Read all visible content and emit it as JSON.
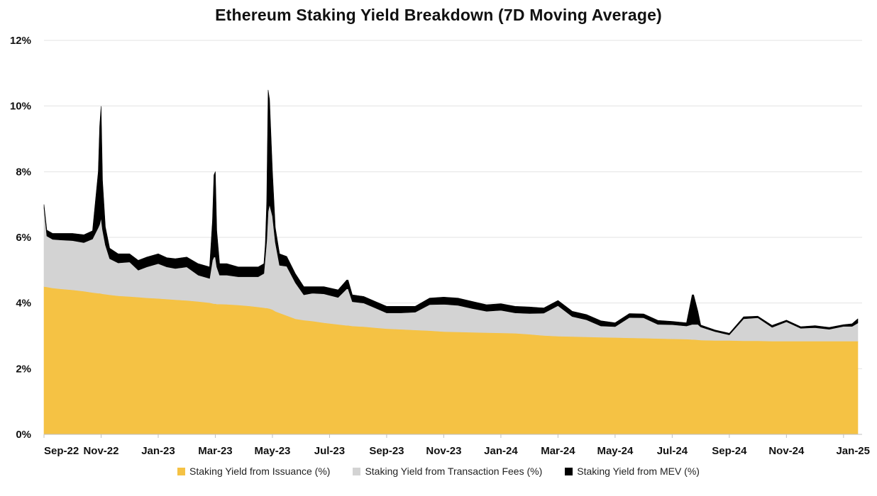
{
  "chart_data": {
    "type": "area",
    "stacked": true,
    "title": "Ethereum Staking Yield Breakdown (7D Moving Average)",
    "xlabel": "",
    "ylabel": "",
    "ylim": [
      0,
      12
    ],
    "yticks": [
      "0%",
      "2%",
      "4%",
      "6%",
      "8%",
      "10%",
      "12%"
    ],
    "ytick_values": [
      0,
      2,
      4,
      6,
      8,
      10,
      12
    ],
    "xticks": [
      "Sep-22",
      "Nov-22",
      "Jan-23",
      "Mar-23",
      "May-23",
      "Jul-23",
      "Sep-23",
      "Nov-23",
      "Jan-24",
      "Mar-24",
      "May-24",
      "Jul-24",
      "Sep-24",
      "Nov-24",
      "Jan-25"
    ],
    "xtick_months": [
      0,
      2,
      4,
      6,
      8,
      10,
      12,
      14,
      16,
      18,
      20,
      22,
      24,
      26,
      28
    ],
    "x_months": [
      0,
      0.1,
      0.3,
      0.6,
      1.0,
      1.4,
      1.7,
      1.9,
      1.95,
      2.0,
      2.05,
      2.15,
      2.3,
      2.6,
      3.0,
      3.3,
      3.6,
      4.0,
      4.3,
      4.6,
      5.0,
      5.4,
      5.8,
      5.9,
      5.95,
      6.0,
      6.05,
      6.15,
      6.4,
      6.8,
      7.2,
      7.5,
      7.7,
      7.75,
      7.8,
      7.85,
      7.9,
      8.0,
      8.1,
      8.25,
      8.5,
      8.8,
      9.1,
      9.4,
      9.8,
      10.3,
      10.6,
      10.65,
      10.8,
      11.2,
      11.6,
      12.0,
      12.5,
      13.0,
      13.5,
      14.0,
      14.5,
      15.0,
      15.5,
      16.0,
      16.5,
      17.0,
      17.5,
      18.0,
      18.5,
      19.0,
      19.5,
      20.0,
      20.5,
      21.0,
      21.5,
      22.0,
      22.5,
      22.7,
      22.75,
      22.9,
      23.0,
      23.5,
      24.0,
      24.5,
      25.0,
      25.5,
      26.0,
      26.5,
      27.0,
      27.5,
      28.0,
      28.3,
      28.5,
      28.7
    ],
    "series": [
      {
        "name": "Staking Yield from Issuance (%)",
        "color": "#F5C244",
        "values": [
          4.5,
          4.49,
          4.46,
          4.43,
          4.4,
          4.36,
          4.32,
          4.3,
          4.3,
          4.29,
          4.28,
          4.27,
          4.25,
          4.22,
          4.2,
          4.18,
          4.16,
          4.14,
          4.12,
          4.1,
          4.08,
          4.05,
          4.01,
          3.99,
          3.98,
          3.98,
          3.97,
          3.97,
          3.96,
          3.94,
          3.91,
          3.88,
          3.86,
          3.85,
          3.85,
          3.84,
          3.83,
          3.8,
          3.75,
          3.7,
          3.62,
          3.52,
          3.48,
          3.45,
          3.4,
          3.35,
          3.32,
          3.32,
          3.3,
          3.28,
          3.25,
          3.22,
          3.2,
          3.18,
          3.16,
          3.13,
          3.12,
          3.11,
          3.1,
          3.09,
          3.08,
          3.05,
          3.01,
          2.99,
          2.98,
          2.97,
          2.96,
          2.95,
          2.94,
          2.93,
          2.92,
          2.91,
          2.9,
          2.89,
          2.89,
          2.88,
          2.87,
          2.86,
          2.86,
          2.85,
          2.85,
          2.84,
          2.84,
          2.84,
          2.84,
          2.84,
          2.84,
          2.84,
          2.84,
          2.84
        ]
      },
      {
        "name": "Staking Yield from Transaction Fees (%)",
        "color": "#D3D3D3",
        "values": [
          2.4,
          1.55,
          1.48,
          1.49,
          1.5,
          1.48,
          1.63,
          2.0,
          2.1,
          2.3,
          1.95,
          1.5,
          1.1,
          1.0,
          1.05,
          0.82,
          0.94,
          1.06,
          0.98,
          0.95,
          1.02,
          0.8,
          0.74,
          1.31,
          1.42,
          1.42,
          1.13,
          0.88,
          0.89,
          0.86,
          0.89,
          0.92,
          1.04,
          1.55,
          2.05,
          2.95,
          3.17,
          2.85,
          2.1,
          1.45,
          1.5,
          1.1,
          0.77,
          0.85,
          0.88,
          0.82,
          1.11,
          1.11,
          0.74,
          0.72,
          0.6,
          0.48,
          0.5,
          0.54,
          0.79,
          0.83,
          0.81,
          0.72,
          0.65,
          0.69,
          0.62,
          0.63,
          0.68,
          0.93,
          0.61,
          0.52,
          0.34,
          0.33,
          0.62,
          0.62,
          0.43,
          0.43,
          0.4,
          0.46,
          0.46,
          0.47,
          0.4,
          0.27,
          0.17,
          0.67,
          0.7,
          0.42,
          0.59,
          0.39,
          0.41,
          0.36,
          0.45,
          0.45,
          0.55,
          0.35
        ]
      },
      {
        "name": "Staking Yield from MEV (%)",
        "color": "#000000",
        "values": [
          0.1,
          0.18,
          0.18,
          0.2,
          0.22,
          0.24,
          0.25,
          1.7,
          3.0,
          3.4,
          1.5,
          0.55,
          0.32,
          0.28,
          0.25,
          0.3,
          0.3,
          0.3,
          0.28,
          0.3,
          0.3,
          0.35,
          0.35,
          1.2,
          2.5,
          2.6,
          1.1,
          0.35,
          0.35,
          0.3,
          0.3,
          0.3,
          0.3,
          0.4,
          1.2,
          3.7,
          3.2,
          1.35,
          0.45,
          0.35,
          0.3,
          0.28,
          0.25,
          0.2,
          0.22,
          0.23,
          0.27,
          0.27,
          0.21,
          0.2,
          0.2,
          0.2,
          0.2,
          0.18,
          0.2,
          0.22,
          0.22,
          0.22,
          0.2,
          0.2,
          0.2,
          0.2,
          0.16,
          0.16,
          0.16,
          0.16,
          0.16,
          0.12,
          0.12,
          0.12,
          0.12,
          0.1,
          0.1,
          0.9,
          0.9,
          0.4,
          0.06,
          0.05,
          0.05,
          0.06,
          0.05,
          0.06,
          0.05,
          0.05,
          0.06,
          0.06,
          0.05,
          0.08,
          0.13,
          0.05
        ]
      }
    ],
    "legend_position": "bottom",
    "grid": true
  }
}
